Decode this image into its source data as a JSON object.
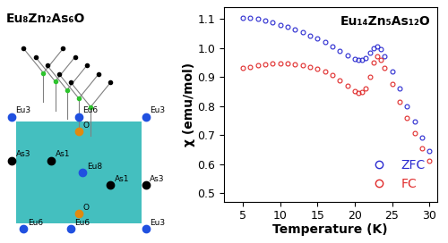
{
  "chart_data": {
    "type": "scatter",
    "annotation": "Eu₁₄Zn₅As₁₂O",
    "x_label": "Temperature (K)",
    "y_label": "χ (emu/mol)",
    "x": [
      5,
      6,
      7,
      8,
      9,
      10,
      11,
      12,
      13,
      14,
      15,
      16,
      17,
      18,
      19,
      20,
      20.5,
      21,
      21.5,
      22,
      22.5,
      23,
      23.5,
      24,
      25,
      26,
      27,
      28,
      29,
      30
    ],
    "series": [
      {
        "name": "ZFC",
        "color": "#2b2bd0",
        "marker": "circle",
        "values": [
          1.105,
          1.103,
          1.1,
          1.095,
          1.088,
          1.08,
          1.072,
          1.062,
          1.053,
          1.043,
          1.032,
          1.02,
          1.005,
          0.99,
          0.975,
          0.962,
          0.958,
          0.958,
          0.965,
          0.985,
          1.0,
          1.005,
          0.995,
          0.97,
          0.92,
          0.86,
          0.8,
          0.745,
          0.69,
          0.645
        ]
      },
      {
        "name": "FC",
        "color": "#e02a2a",
        "marker": "circle",
        "values": [
          0.93,
          0.935,
          0.94,
          0.943,
          0.945,
          0.946,
          0.946,
          0.944,
          0.94,
          0.935,
          0.928,
          0.918,
          0.905,
          0.888,
          0.868,
          0.85,
          0.845,
          0.848,
          0.86,
          0.9,
          0.95,
          0.97,
          0.96,
          0.93,
          0.875,
          0.815,
          0.76,
          0.705,
          0.655,
          0.61
        ]
      }
    ],
    "xlim": [
      2.5,
      31
    ],
    "xticks": [
      5,
      10,
      15,
      20,
      25,
      30
    ],
    "ylim": [
      0.47,
      1.14
    ],
    "yticks": [
      {
        "value": 0.5,
        "label": "0.5"
      },
      {
        "value": 0.6,
        "label": "0.6"
      },
      {
        "value": 0.7,
        "label": "0.7"
      },
      {
        "value": 0.8,
        "label": "0.8"
      },
      {
        "value": 0.9,
        "label": "0.9"
      },
      {
        "value": 1.0,
        "label": "1.0"
      },
      {
        "value": 1.1,
        "label": "1.1"
      }
    ],
    "legend": "lower right",
    "grid": false
  },
  "structure": {
    "title": "Eu₈Zn₂As₆O",
    "atoms": [
      "Eu3",
      "Eu6",
      "Eu3",
      "As3",
      "As1",
      "O",
      "Eu8",
      "O",
      "As1",
      "As3",
      "Eu6",
      "Eu6",
      "Eu3"
    ]
  }
}
